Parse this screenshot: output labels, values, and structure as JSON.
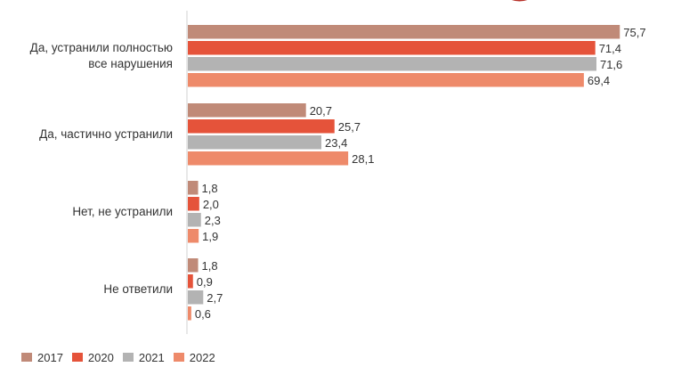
{
  "chart_data": {
    "type": "bar",
    "orientation": "horizontal",
    "categories": [
      "Да, устранили полностью все нарушения",
      "Да, частично устранили",
      "Нет, не устранили",
      "Не ответили"
    ],
    "category_lines": [
      [
        "Да, устранили полностью",
        "все нарушения"
      ],
      [
        "Да, частично устранили"
      ],
      [
        "Нет, не устранили"
      ],
      [
        "Не ответили"
      ]
    ],
    "series": [
      {
        "name": "2017",
        "color": "#c08a78",
        "values": [
          75.7,
          20.7,
          1.8,
          1.8
        ],
        "labels": [
          "75,7",
          "20,7",
          "1,8",
          "1,8"
        ]
      },
      {
        "name": "2020",
        "color": "#e5533a",
        "values": [
          71.4,
          25.7,
          2.0,
          0.9
        ],
        "labels": [
          "71,4",
          "25,7",
          "2,0",
          "0,9"
        ]
      },
      {
        "name": "2021",
        "color": "#b3b3b3",
        "values": [
          71.6,
          23.4,
          2.3,
          2.7
        ],
        "labels": [
          "71,6",
          "23,4",
          "2,3",
          "2,7"
        ]
      },
      {
        "name": "2022",
        "color": "#ee8a6a",
        "values": [
          69.4,
          28.1,
          1.9,
          0.6
        ],
        "labels": [
          "69,4",
          "28,1",
          "1,9",
          "0,6"
        ]
      }
    ],
    "xlim": [
      0,
      78
    ],
    "legend_position": "bottom-left",
    "grid": false,
    "title": "",
    "xlabel": "",
    "ylabel": ""
  },
  "legend": {
    "items": [
      "2017",
      "2020",
      "2021",
      "2022"
    ]
  }
}
